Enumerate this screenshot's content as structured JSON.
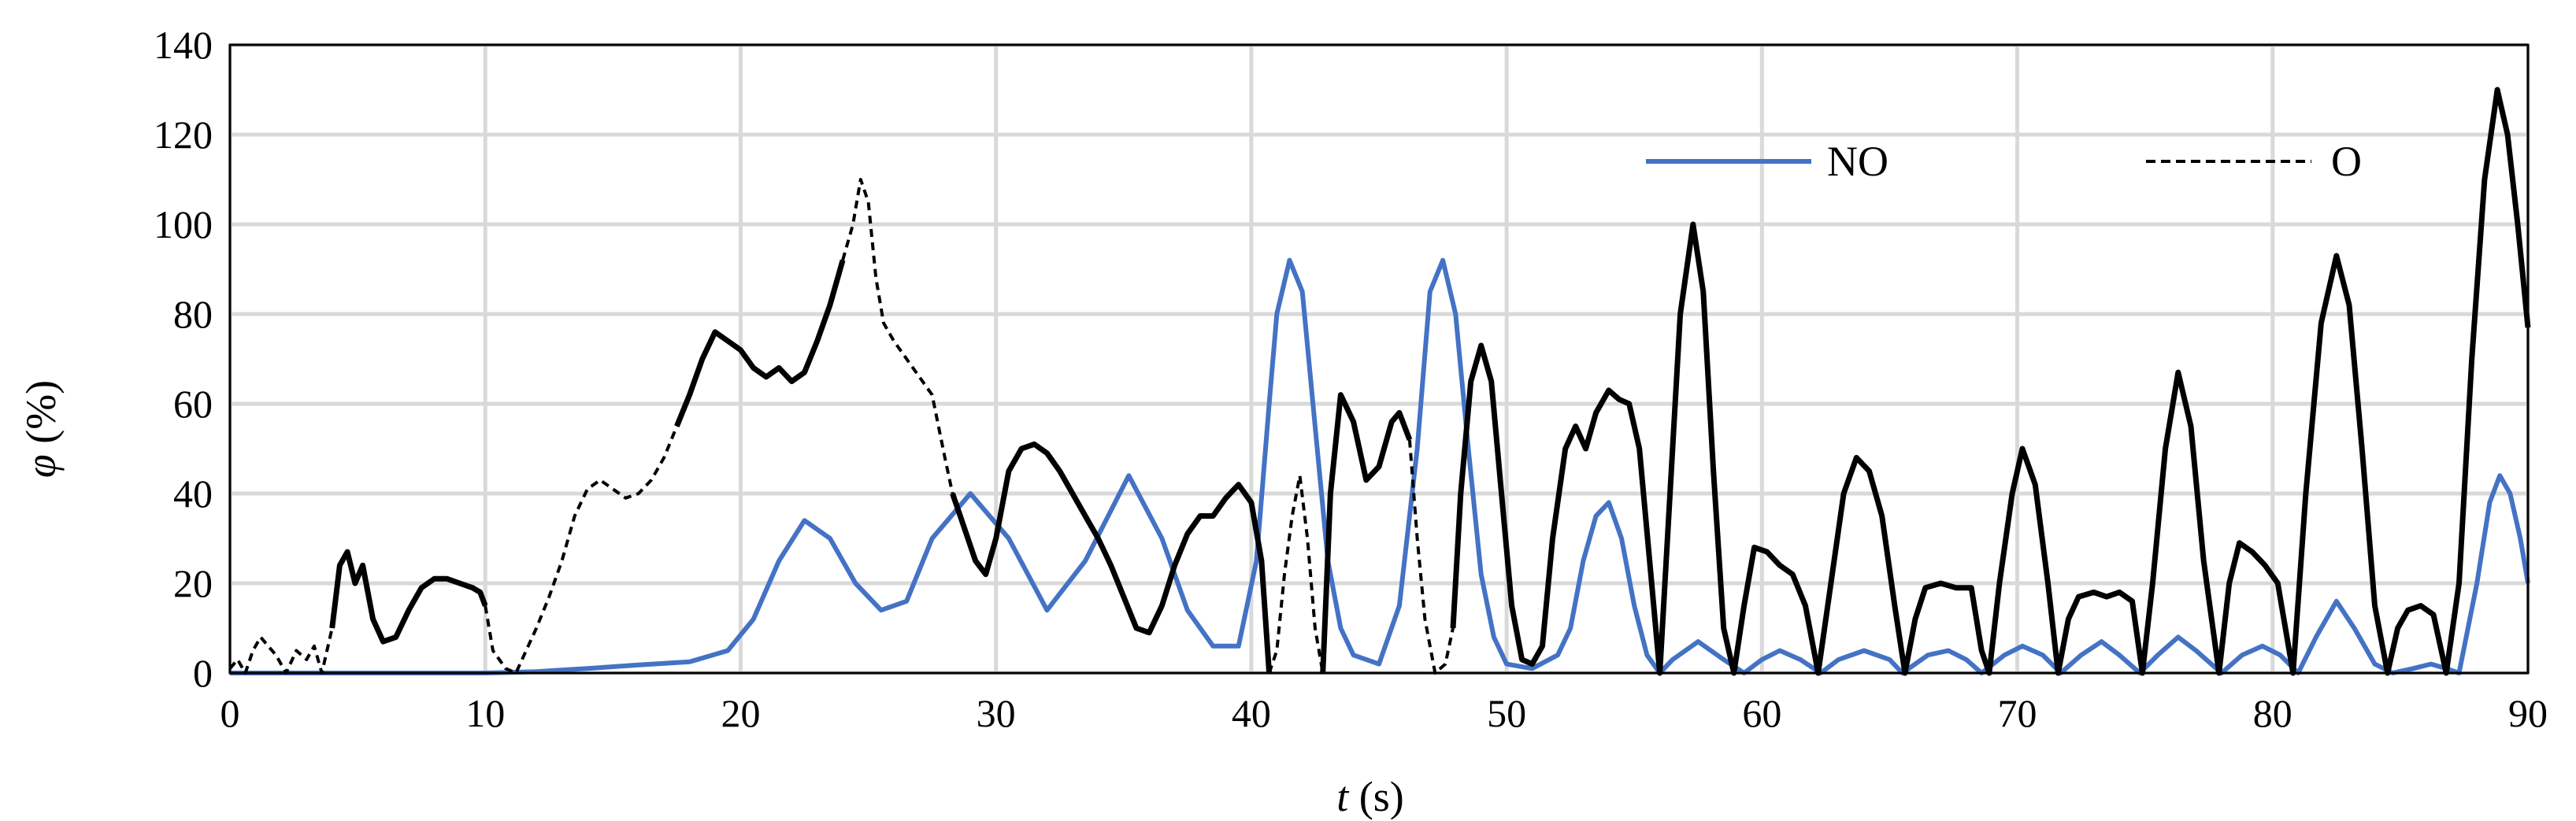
{
  "chart_data": {
    "type": "line",
    "xlabel": {
      "italic": "t",
      "rest": " (s)"
    },
    "ylabel": {
      "italic": "φ",
      "rest": " (%)"
    },
    "xlim": [
      0,
      90
    ],
    "ylim": [
      0,
      140
    ],
    "x_ticks": [
      0,
      10,
      20,
      30,
      40,
      50,
      60,
      70,
      80,
      90
    ],
    "y_ticks": [
      0,
      20,
      40,
      60,
      80,
      100,
      120,
      140
    ],
    "grid": true,
    "legend_position": "top-right",
    "series": [
      {
        "name": "NO",
        "color": "#4472c4",
        "style": "solid",
        "points": [
          [
            0,
            0
          ],
          [
            10,
            0
          ],
          [
            12,
            0.3
          ],
          [
            14,
            1
          ],
          [
            16,
            1.8
          ],
          [
            18,
            2.5
          ],
          [
            19.5,
            5
          ],
          [
            20.5,
            12
          ],
          [
            21.5,
            25
          ],
          [
            22.5,
            34
          ],
          [
            23.5,
            30
          ],
          [
            24.5,
            20
          ],
          [
            25.5,
            14
          ],
          [
            26.5,
            16
          ],
          [
            27.5,
            30
          ],
          [
            29,
            40
          ],
          [
            30.5,
            30
          ],
          [
            32,
            14
          ],
          [
            33.5,
            25
          ],
          [
            35.2,
            44
          ],
          [
            36.5,
            30
          ],
          [
            37.5,
            14
          ],
          [
            38.5,
            6
          ],
          [
            39.5,
            6
          ],
          [
            40.2,
            25
          ],
          [
            40.7,
            60
          ],
          [
            41,
            80
          ],
          [
            41.5,
            92
          ],
          [
            42,
            85
          ],
          [
            42.5,
            55
          ],
          [
            43,
            25
          ],
          [
            43.5,
            10
          ],
          [
            44,
            4
          ],
          [
            45,
            2
          ],
          [
            45.8,
            15
          ],
          [
            46.5,
            50
          ],
          [
            47,
            85
          ],
          [
            47.5,
            92
          ],
          [
            48,
            80
          ],
          [
            48.5,
            50
          ],
          [
            49,
            22
          ],
          [
            49.5,
            8
          ],
          [
            50,
            2
          ],
          [
            51,
            1
          ],
          [
            52,
            4
          ],
          [
            52.5,
            10
          ],
          [
            53,
            25
          ],
          [
            53.5,
            35
          ],
          [
            54,
            38
          ],
          [
            54.5,
            30
          ],
          [
            55,
            15
          ],
          [
            55.5,
            4
          ],
          [
            56,
            0
          ],
          [
            56.5,
            3
          ],
          [
            57.5,
            7
          ],
          [
            58.5,
            3
          ],
          [
            59.3,
            0
          ],
          [
            60,
            3
          ],
          [
            60.7,
            5
          ],
          [
            61.5,
            3
          ],
          [
            62.3,
            0
          ],
          [
            63,
            3
          ],
          [
            64,
            5
          ],
          [
            65,
            3
          ],
          [
            65.5,
            0
          ],
          [
            66.5,
            4
          ],
          [
            67.3,
            5
          ],
          [
            68,
            3
          ],
          [
            68.6,
            0
          ],
          [
            69.5,
            4
          ],
          [
            70.2,
            6
          ],
          [
            71,
            4
          ],
          [
            71.7,
            0
          ],
          [
            72.5,
            4
          ],
          [
            73.3,
            7
          ],
          [
            74,
            4
          ],
          [
            74.8,
            0
          ],
          [
            75.5,
            4
          ],
          [
            76.3,
            8
          ],
          [
            77,
            5
          ],
          [
            78,
            0
          ],
          [
            78.8,
            4
          ],
          [
            79.6,
            6
          ],
          [
            80.3,
            4
          ],
          [
            81,
            0
          ],
          [
            81.7,
            8
          ],
          [
            82.5,
            16
          ],
          [
            83.2,
            10
          ],
          [
            84,
            2
          ],
          [
            84.7,
            0
          ],
          [
            85.5,
            1
          ],
          [
            86.2,
            2
          ],
          [
            86.8,
            1
          ],
          [
            87.3,
            0
          ],
          [
            88,
            20
          ],
          [
            88.5,
            38
          ],
          [
            88.9,
            44
          ],
          [
            89.3,
            40
          ],
          [
            89.7,
            30
          ],
          [
            90,
            20
          ]
        ]
      },
      {
        "name": "O",
        "color": "#000000",
        "style": "mixed",
        "points": [
          [
            0,
            1
          ],
          [
            0.3,
            3
          ],
          [
            0.6,
            0
          ],
          [
            0.9,
            5
          ],
          [
            1.2,
            8
          ],
          [
            1.5,
            6
          ],
          [
            1.8,
            4
          ],
          [
            2.2,
            0
          ],
          [
            2.6,
            5
          ],
          [
            3,
            3
          ],
          [
            3.3,
            6
          ],
          [
            3.6,
            0
          ],
          [
            4,
            10
          ],
          [
            4.3,
            24
          ],
          [
            4.6,
            27
          ],
          [
            4.9,
            20
          ],
          [
            5.2,
            24
          ],
          [
            5.6,
            12
          ],
          [
            6,
            7
          ],
          [
            6.5,
            8
          ],
          [
            7,
            14
          ],
          [
            7.5,
            19
          ],
          [
            8,
            21
          ],
          [
            8.5,
            21
          ],
          [
            9,
            20
          ],
          [
            9.5,
            19
          ],
          [
            9.8,
            18
          ],
          [
            10,
            15
          ],
          [
            10.3,
            5
          ],
          [
            10.8,
            1
          ],
          [
            11.2,
            0
          ],
          [
            11.6,
            5
          ],
          [
            12,
            10
          ],
          [
            12.5,
            17
          ],
          [
            13,
            25
          ],
          [
            13.5,
            35
          ],
          [
            14,
            41
          ],
          [
            14.5,
            43
          ],
          [
            15,
            41
          ],
          [
            15.5,
            39
          ],
          [
            16,
            40
          ],
          [
            16.5,
            43
          ],
          [
            17,
            48
          ],
          [
            17.5,
            55
          ],
          [
            18,
            62
          ],
          [
            18.5,
            70
          ],
          [
            19,
            76
          ],
          [
            19.5,
            74
          ],
          [
            20,
            72
          ],
          [
            20.5,
            68
          ],
          [
            21,
            66
          ],
          [
            21.5,
            68
          ],
          [
            22,
            65
          ],
          [
            22.5,
            67
          ],
          [
            23,
            74
          ],
          [
            23.5,
            82
          ],
          [
            24,
            92
          ],
          [
            24.4,
            100
          ],
          [
            24.7,
            110
          ],
          [
            25,
            105
          ],
          [
            25.3,
            88
          ],
          [
            25.6,
            78
          ],
          [
            26,
            74
          ],
          [
            26.5,
            70
          ],
          [
            27,
            66
          ],
          [
            27.5,
            62
          ],
          [
            28,
            48
          ],
          [
            28.3,
            40
          ],
          [
            28.6,
            35
          ],
          [
            29.2,
            25
          ],
          [
            29.6,
            22
          ],
          [
            30,
            30
          ],
          [
            30.5,
            45
          ],
          [
            31,
            50
          ],
          [
            31.5,
            51
          ],
          [
            32,
            49
          ],
          [
            32.5,
            45
          ],
          [
            33,
            40
          ],
          [
            33.5,
            35
          ],
          [
            34,
            30
          ],
          [
            34.5,
            24
          ],
          [
            35,
            17
          ],
          [
            35.5,
            10
          ],
          [
            36,
            9
          ],
          [
            36.5,
            15
          ],
          [
            37,
            24
          ],
          [
            37.5,
            31
          ],
          [
            38,
            35
          ],
          [
            38.5,
            35
          ],
          [
            39,
            39
          ],
          [
            39.5,
            42
          ],
          [
            40,
            38
          ],
          [
            40.4,
            25
          ],
          [
            40.7,
            0
          ],
          [
            41,
            5
          ],
          [
            41.3,
            22
          ],
          [
            41.6,
            35
          ],
          [
            41.9,
            44
          ],
          [
            42.2,
            30
          ],
          [
            42.5,
            10
          ],
          [
            42.8,
            0
          ],
          [
            43.1,
            40
          ],
          [
            43.5,
            62
          ],
          [
            44,
            56
          ],
          [
            44.5,
            43
          ],
          [
            45,
            46
          ],
          [
            45.5,
            56
          ],
          [
            45.8,
            58
          ],
          [
            46.2,
            52
          ],
          [
            46.5,
            30
          ],
          [
            46.8,
            12
          ],
          [
            47.2,
            0
          ],
          [
            47.6,
            2
          ],
          [
            47.9,
            10
          ],
          [
            48.2,
            40
          ],
          [
            48.6,
            65
          ],
          [
            49,
            73
          ],
          [
            49.4,
            65
          ],
          [
            49.8,
            40
          ],
          [
            50.2,
            15
          ],
          [
            50.6,
            3
          ],
          [
            51,
            2
          ],
          [
            51.4,
            6
          ],
          [
            51.8,
            30
          ],
          [
            52.3,
            50
          ],
          [
            52.7,
            55
          ],
          [
            53.1,
            50
          ],
          [
            53.5,
            58
          ],
          [
            54,
            63
          ],
          [
            54.4,
            61
          ],
          [
            54.8,
            60
          ],
          [
            55.2,
            50
          ],
          [
            55.6,
            25
          ],
          [
            56,
            0
          ],
          [
            56.4,
            40
          ],
          [
            56.8,
            80
          ],
          [
            57.3,
            100
          ],
          [
            57.7,
            85
          ],
          [
            58.1,
            45
          ],
          [
            58.5,
            10
          ],
          [
            58.9,
            0
          ],
          [
            59.3,
            15
          ],
          [
            59.7,
            28
          ],
          [
            60.2,
            27
          ],
          [
            60.7,
            24
          ],
          [
            61.2,
            22
          ],
          [
            61.7,
            15
          ],
          [
            62.2,
            0
          ],
          [
            62.7,
            20
          ],
          [
            63.2,
            40
          ],
          [
            63.7,
            48
          ],
          [
            64.2,
            45
          ],
          [
            64.7,
            35
          ],
          [
            65.2,
            15
          ],
          [
            65.6,
            0
          ],
          [
            66,
            12
          ],
          [
            66.4,
            19
          ],
          [
            67,
            20
          ],
          [
            67.6,
            19
          ],
          [
            68.2,
            19
          ],
          [
            68.6,
            5
          ],
          [
            68.9,
            0
          ],
          [
            69.3,
            20
          ],
          [
            69.8,
            40
          ],
          [
            70.2,
            50
          ],
          [
            70.7,
            42
          ],
          [
            71.2,
            20
          ],
          [
            71.6,
            0
          ],
          [
            72,
            12
          ],
          [
            72.4,
            17
          ],
          [
            73,
            18
          ],
          [
            73.5,
            17
          ],
          [
            74,
            18
          ],
          [
            74.5,
            16
          ],
          [
            74.9,
            0
          ],
          [
            75.3,
            20
          ],
          [
            75.8,
            50
          ],
          [
            76.3,
            67
          ],
          [
            76.8,
            55
          ],
          [
            77.3,
            25
          ],
          [
            77.9,
            0
          ],
          [
            78.3,
            20
          ],
          [
            78.7,
            29
          ],
          [
            79.2,
            27
          ],
          [
            79.7,
            24
          ],
          [
            80.2,
            20
          ],
          [
            80.8,
            0
          ],
          [
            81.3,
            40
          ],
          [
            81.9,
            78
          ],
          [
            82.5,
            93
          ],
          [
            83,
            82
          ],
          [
            83.5,
            50
          ],
          [
            84,
            15
          ],
          [
            84.5,
            0
          ],
          [
            84.9,
            10
          ],
          [
            85.3,
            14
          ],
          [
            85.8,
            15
          ],
          [
            86.3,
            13
          ],
          [
            86.8,
            0
          ],
          [
            87.3,
            20
          ],
          [
            87.8,
            70
          ],
          [
            88.3,
            110
          ],
          [
            88.8,
            130
          ],
          [
            89.2,
            120
          ],
          [
            89.6,
            100
          ],
          [
            90,
            77
          ]
        ],
        "dashed_ranges": [
          [
            0,
            4
          ],
          [
            10.1,
            17.5
          ],
          [
            24,
            28.2
          ],
          [
            40.6,
            42.8
          ],
          [
            46.3,
            47.8
          ]
        ]
      }
    ]
  }
}
